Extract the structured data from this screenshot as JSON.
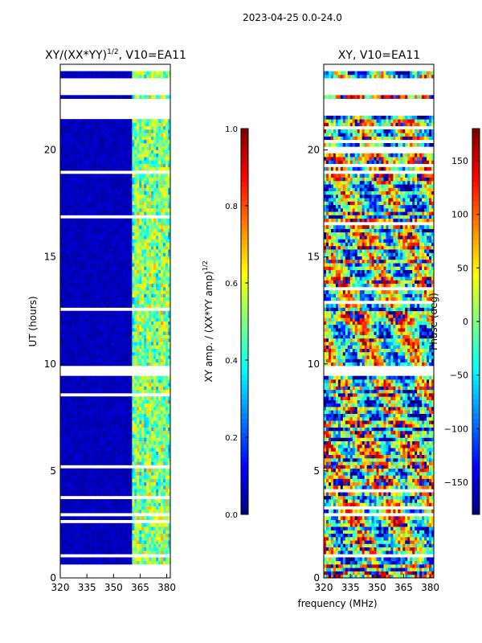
{
  "suptitle": "2023-04-25 0.0-24.0",
  "xlabel": "frequency (MHz)",
  "colors": {
    "jet": [
      "#00007f",
      "#0000ff",
      "#007fff",
      "#00ffff",
      "#7fff7f",
      "#ffff00",
      "#ff7f00",
      "#ff0000",
      "#7f0000"
    ],
    "background": "#ffffff"
  },
  "chart_data": [
    {
      "type": "heatmap",
      "title": "XY/(XX*YY)",
      "title_power": "1/2",
      "title_suffix": ", V10=EA11",
      "xlabel": "frequency (MHz)",
      "ylabel": "UT (hours)",
      "xlim": [
        320,
        382
      ],
      "ylim": [
        0,
        24
      ],
      "xticks": [
        "320",
        "335",
        "350",
        "365",
        "380"
      ],
      "xtick_values": [
        320,
        335,
        350,
        365,
        380
      ],
      "yticks": [
        "0",
        "5",
        "10",
        "15",
        "20"
      ],
      "ytick_values": [
        0,
        5,
        10,
        15,
        20
      ],
      "colorbar": {
        "label": "XY amp. / (XX*YY amp)",
        "label_power": "1/2",
        "range": [
          0.0,
          1.0
        ],
        "ticks": [
          "0.0",
          "0.2",
          "0.4",
          "0.6",
          "0.8",
          "1.0"
        ],
        "tick_values": [
          0,
          0.2,
          0.4,
          0.6,
          0.8,
          1.0
        ]
      },
      "flagged_time_ranges": [
        [
          0.0,
          0.3
        ],
        [
          0.9,
          1.15
        ],
        [
          2.95,
          3.1
        ],
        [
          9.5,
          9.85
        ],
        [
          18.9,
          19.1
        ],
        [
          21.65,
          22.4
        ],
        [
          22.55,
          23.3
        ],
        [
          23.7,
          24.0
        ]
      ],
      "high_amplitude_freq_band": [
        360,
        382
      ]
    },
    {
      "type": "heatmap",
      "title": "XY, V10=EA11",
      "xlabel": "frequency (MHz)",
      "ylabel": "",
      "xlim": [
        320,
        382
      ],
      "ylim": [
        0,
        24
      ],
      "xticks": [
        "320",
        "335",
        "350",
        "365",
        "380"
      ],
      "xtick_values": [
        320,
        335,
        350,
        365,
        380
      ],
      "yticks": [
        "0",
        "5",
        "10",
        "15",
        "20"
      ],
      "ytick_values": [
        0,
        5,
        10,
        15,
        20
      ],
      "colorbar": {
        "label": "Phase (deg)",
        "range": [
          -180,
          180
        ],
        "ticks": [
          "−150",
          "−100",
          "−50",
          "0",
          "50",
          "100",
          "150"
        ],
        "tick_values": [
          -150,
          -100,
          -50,
          0,
          50,
          100,
          150
        ]
      },
      "flagged_time_ranges": [
        [
          0.9,
          1.15
        ],
        [
          2.95,
          3.1
        ],
        [
          9.5,
          9.85
        ],
        [
          18.9,
          19.1
        ],
        [
          21.65,
          22.4
        ],
        [
          22.55,
          23.3
        ],
        [
          23.7,
          24.0
        ]
      ]
    }
  ]
}
